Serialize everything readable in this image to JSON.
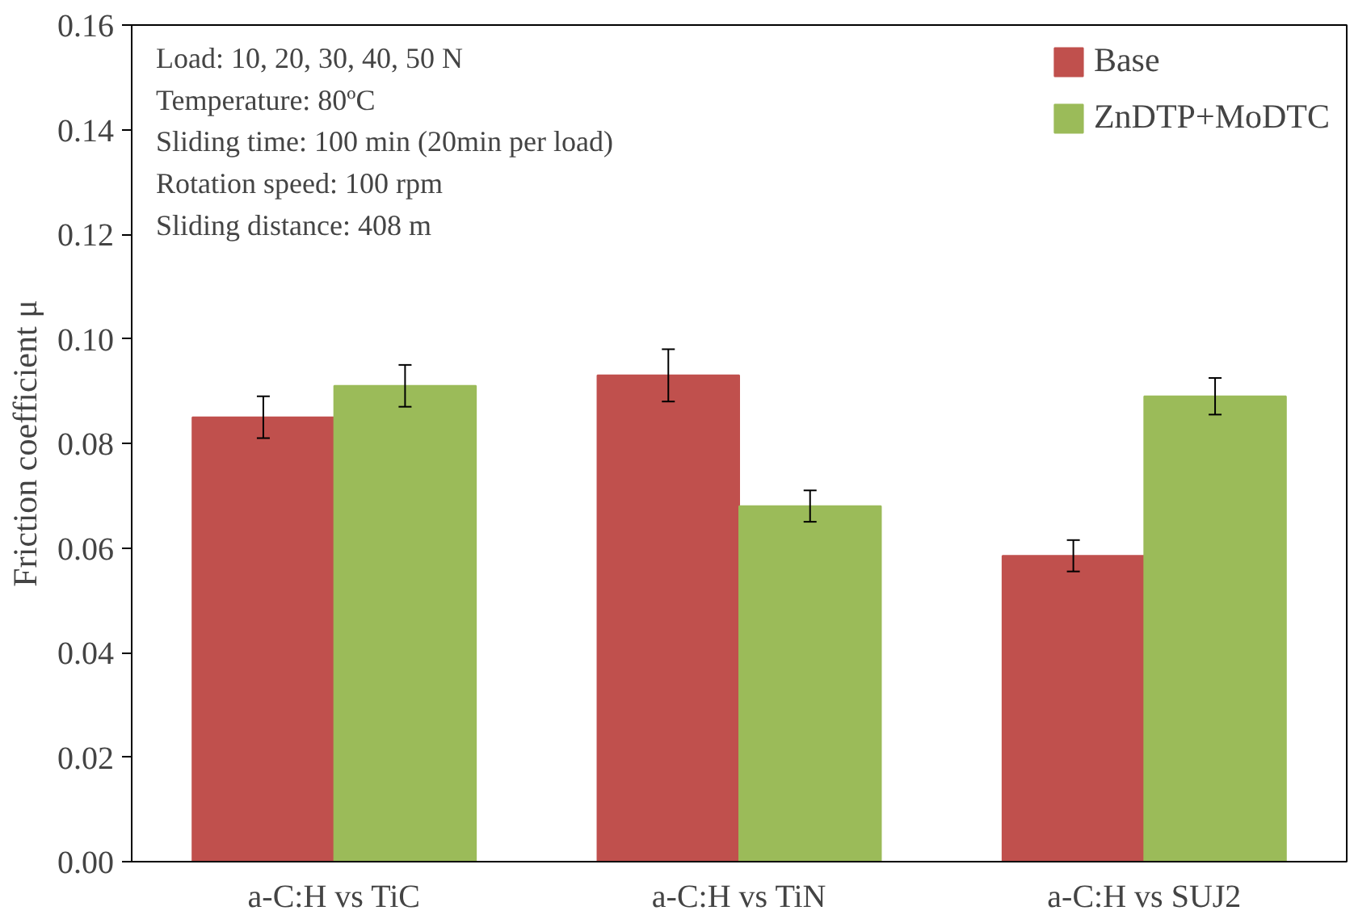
{
  "chart_data": {
    "type": "bar",
    "ylabel": "Friction coefficient μ",
    "categories": [
      "a-C:H vs TiC",
      "a-C:H vs TiN",
      "a-C:H vs SUJ2"
    ],
    "series": [
      {
        "name": "Base",
        "color": "#c0504d",
        "values": [
          0.085,
          0.093,
          0.0585
        ],
        "errors": [
          0.004,
          0.005,
          0.003
        ]
      },
      {
        "name": "ZnDTP+MoDTC",
        "color": "#9bbb59",
        "values": [
          0.091,
          0.068,
          0.089
        ],
        "errors": [
          0.004,
          0.003,
          0.0035
        ]
      }
    ],
    "ylim": [
      0,
      0.16
    ],
    "yticks": [
      {
        "value": 0,
        "label": "0.00"
      },
      {
        "value": 0.02,
        "label": "0.02"
      },
      {
        "value": 0.04,
        "label": "0.04"
      },
      {
        "value": 0.06,
        "label": "0.06"
      },
      {
        "value": 0.08,
        "label": "0.08"
      },
      {
        "value": 0.1,
        "label": "0.10"
      },
      {
        "value": 0.12,
        "label": "0.12"
      },
      {
        "value": 0.14,
        "label": "0.14"
      },
      {
        "value": 0.16,
        "label": "0.16"
      }
    ],
    "annotations": [
      "Load: 10, 20, 30, 40, 50 N",
      "Temperature: 80ºC",
      "Sliding time: 100 min (20min per load)",
      "Rotation speed: 100 rpm",
      "Sliding distance: 408 m"
    ],
    "legend": "top right",
    "grid": false
  }
}
